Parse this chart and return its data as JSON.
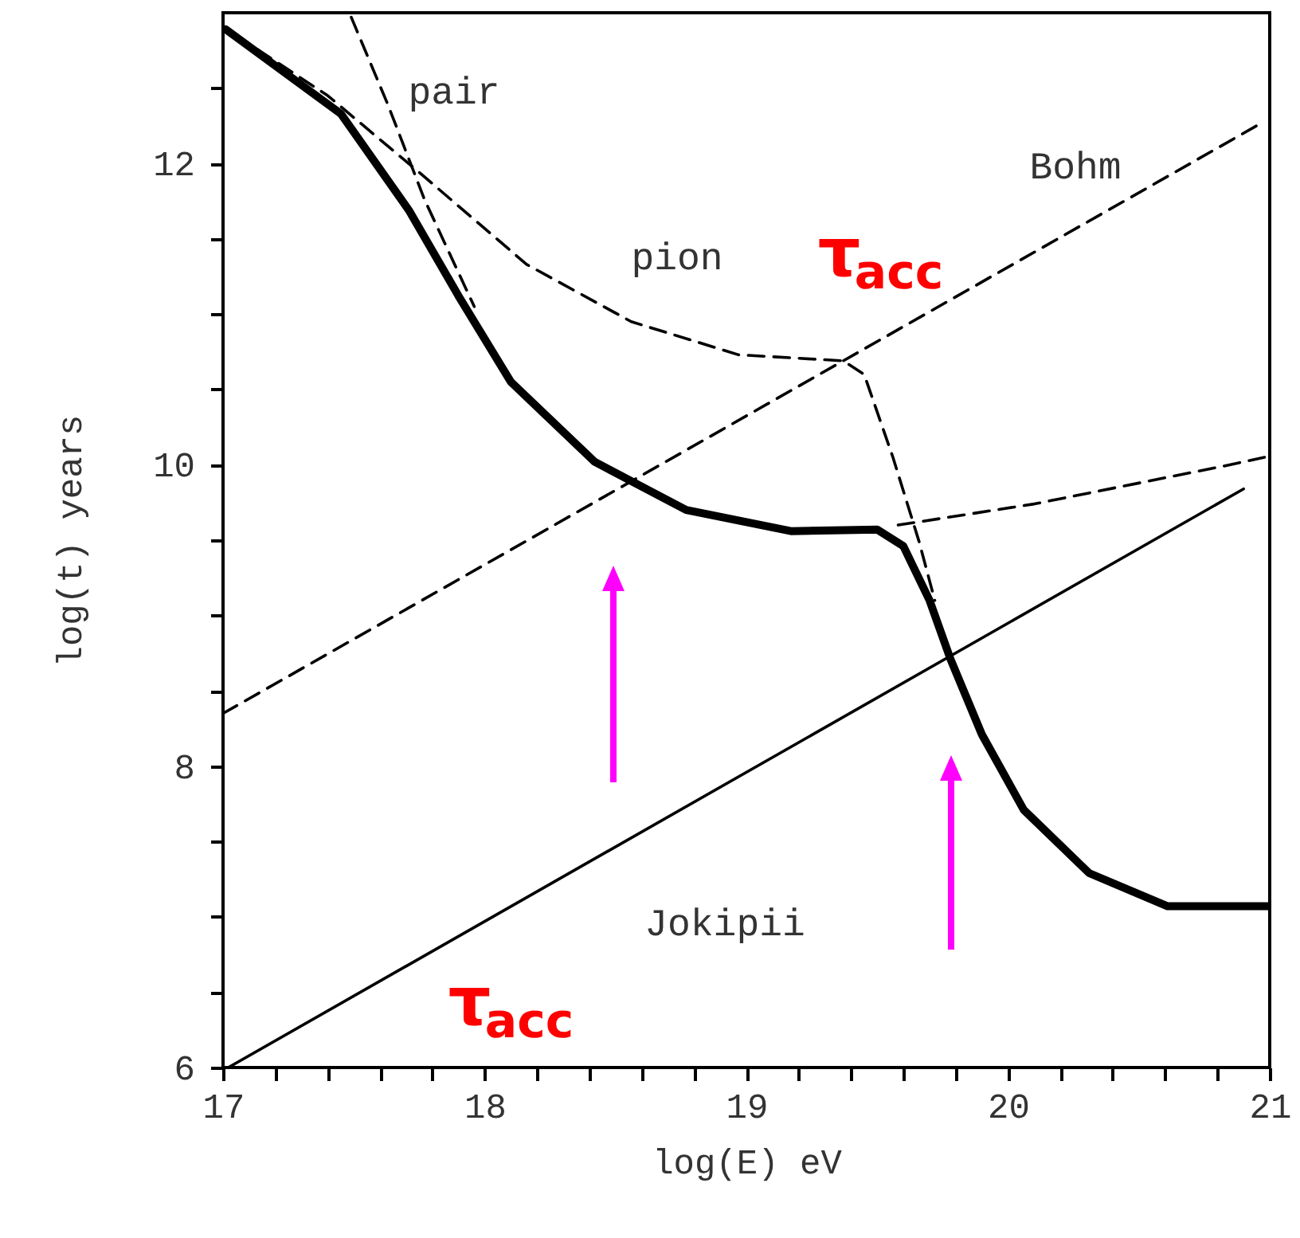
{
  "chart_data": {
    "type": "line",
    "xlabel": "log(E) eV",
    "ylabel": "log(t) years",
    "xlim": [
      17,
      21
    ],
    "ylim": [
      6,
      13
    ],
    "xticks": [
      17,
      {
        "value": 17.2,
        "label": null
      },
      {
        "value": 17.4,
        "label": null
      },
      {
        "value": 17.6,
        "label": null
      },
      {
        "value": 17.8,
        "label": null
      },
      18,
      {
        "value": 18.2,
        "label": null
      },
      {
        "value": 18.4,
        "label": null
      },
      {
        "value": 18.6,
        "label": null
      },
      {
        "value": 18.8,
        "label": null
      },
      19,
      {
        "value": 19.2,
        "label": null
      },
      {
        "value": 19.4,
        "label": null
      },
      {
        "value": 19.6,
        "label": null
      },
      {
        "value": 19.8,
        "label": null
      },
      20,
      {
        "value": 20.2,
        "label": null
      },
      {
        "value": 20.4,
        "label": null
      },
      {
        "value": 20.6,
        "label": null
      },
      {
        "value": 20.8,
        "label": null
      },
      21
    ],
    "yticks": [
      6,
      {
        "value": 6.5,
        "label": null
      },
      {
        "value": 7,
        "label": null
      },
      {
        "value": 7.5,
        "label": null
      },
      8,
      {
        "value": 8.5,
        "label": null
      },
      {
        "value": 9,
        "label": null
      },
      {
        "value": 9.5,
        "label": null
      },
      10,
      {
        "value": 10.5,
        "label": null
      },
      {
        "value": 11,
        "label": null
      },
      {
        "value": 11.5,
        "label": null
      },
      12,
      {
        "value": 12.5,
        "label": null
      }
    ],
    "series": [
      {
        "color": "#000000",
        "line_style": "solid",
        "x": [
          17.01,
          17.45,
          17.71,
          17.9,
          18.1,
          18.42,
          18.77,
          19.17,
          19.5,
          19.6,
          19.7,
          19.78,
          19.9,
          20.06,
          20.31,
          20.61,
          21.0
        ],
        "values": [
          12.89,
          12.33,
          11.69,
          11.12,
          10.55,
          10.02,
          9.7,
          9.56,
          9.57,
          9.46,
          9.1,
          8.71,
          8.21,
          7.71,
          7.29,
          7.07,
          7.07
        ]
      },
      {
        "color": "#000000",
        "line_style": "dashed",
        "x": [
          17.05,
          17.4,
          17.75,
          18.16,
          18.56,
          18.97,
          19.37,
          19.45,
          19.56,
          19.66,
          19.72
        ],
        "values": [
          12.85,
          12.45,
          11.94,
          11.33,
          10.95,
          10.73,
          10.69,
          10.6,
          10.05,
          9.49,
          9.1
        ]
      },
      {
        "color": "#000000",
        "line_style": "dashed",
        "x": [
          19.58,
          20.1,
          20.82,
          20.98
        ],
        "values": [
          9.6,
          9.74,
          9.99,
          10.05
        ]
      },
      {
        "color": "#000000",
        "line_style": "dashed",
        "x": [
          17.49,
          17.63,
          17.77,
          17.96
        ],
        "values": [
          12.97,
          12.39,
          11.76,
          11.05
        ]
      },
      {
        "color": "#000000",
        "line_style": "dashed",
        "x": [
          17.0,
          20.95
        ],
        "values": [
          8.35,
          12.25
        ]
      },
      {
        "color": "#000000",
        "line_style": "solid",
        "x": [
          17.02,
          20.9
        ],
        "values": [
          6.0,
          9.84
        ]
      }
    ],
    "annotations": [
      "pair",
      "pion",
      "Bohm",
      "Jokipii",
      "τ$_{acc}$",
      "τ$_{acc}$"
    ]
  }
}
